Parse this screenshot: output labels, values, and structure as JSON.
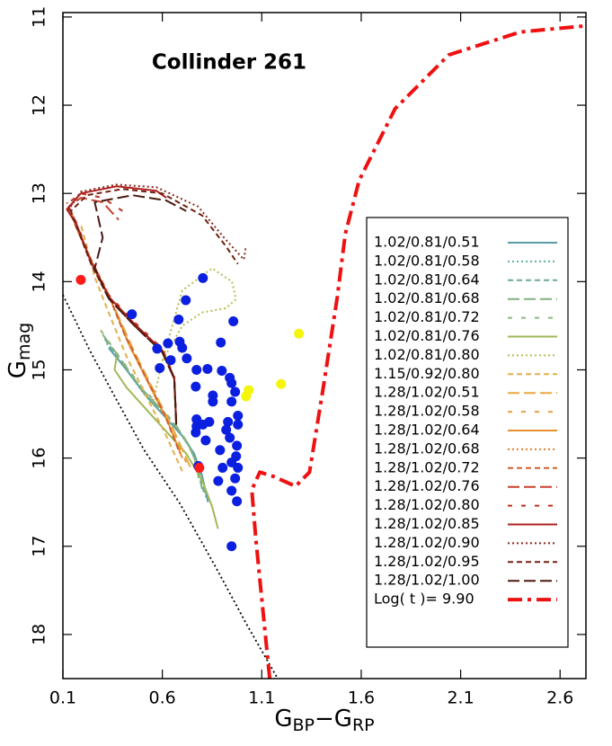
{
  "chart_data": {
    "type": "line",
    "title": "Collinder 261",
    "xlabel": [
      "G",
      "BP",
      "−G",
      "RP"
    ],
    "ylabel": [
      "G",
      "mag"
    ],
    "xlim": [
      0.1,
      2.73
    ],
    "ylim": [
      10.95,
      18.5
    ],
    "y_inverted": true,
    "xticks": [
      0.1,
      0.6,
      1.1,
      1.6,
      2.1,
      2.6
    ],
    "yticks": [
      11,
      12,
      13,
      14,
      15,
      16,
      17,
      18
    ],
    "legend": "lower right",
    "series": [
      {
        "name": "1.02/0.81/0.51",
        "color": "#5a9aa8",
        "style": "solid",
        "width": 2,
        "x": [
          0.33,
          0.42,
          0.52,
          0.62,
          0.7,
          0.76,
          0.8,
          0.83
        ],
        "values": [
          14.75,
          15.0,
          15.3,
          15.55,
          15.75,
          15.95,
          16.2,
          16.5
        ]
      },
      {
        "name": "1.02/0.81/0.58",
        "color": "#5fb0a0",
        "style": "dotted",
        "width": 2,
        "x": [
          0.32,
          0.41,
          0.51,
          0.61,
          0.69,
          0.75,
          0.79,
          0.82
        ],
        "values": [
          14.7,
          14.97,
          15.28,
          15.52,
          15.72,
          15.92,
          16.15,
          16.45
        ]
      },
      {
        "name": "1.02/0.81/0.64",
        "color": "#6aaa90",
        "style": "dashed",
        "width": 2,
        "x": [
          0.31,
          0.4,
          0.5,
          0.6,
          0.68,
          0.74,
          0.78,
          0.81
        ],
        "values": [
          14.65,
          14.93,
          15.24,
          15.48,
          15.68,
          15.88,
          16.1,
          16.4
        ]
      },
      {
        "name": "1.02/0.81/0.68",
        "color": "#80b080",
        "style": "longdash",
        "width": 2,
        "x": [
          0.3,
          0.39,
          0.49,
          0.59,
          0.67,
          0.73,
          0.77,
          0.8
        ],
        "values": [
          14.6,
          14.88,
          15.2,
          15.44,
          15.64,
          15.84,
          16.05,
          16.35
        ]
      },
      {
        "name": "1.02/0.81/0.72",
        "color": "#90b878",
        "style": "sparse",
        "width": 2,
        "x": [
          0.29,
          0.38,
          0.48,
          0.58,
          0.66,
          0.72,
          0.76,
          0.79
        ],
        "values": [
          14.55,
          14.84,
          15.15,
          15.4,
          15.6,
          15.8,
          16.0,
          16.3
        ]
      },
      {
        "name": "1.02/0.81/0.76",
        "color": "#a0b858",
        "style": "solid",
        "width": 2,
        "x": [
          0.37,
          0.36,
          0.42,
          0.52,
          0.62,
          0.72,
          0.8,
          0.85,
          0.88
        ],
        "values": [
          14.85,
          15.0,
          15.2,
          15.45,
          15.7,
          15.95,
          16.25,
          16.55,
          16.8
        ]
      },
      {
        "name": "1.02/0.81/0.80",
        "color": "#b8bc50",
        "style": "dotted",
        "width": 2,
        "x": [
          0.55,
          0.6,
          0.7,
          0.85,
          0.95,
          0.97,
          0.92,
          0.8,
          0.7,
          0.6
        ],
        "values": [
          15.4,
          14.9,
          14.1,
          13.85,
          14.0,
          14.2,
          14.3,
          14.35,
          14.5,
          14.9
        ]
      },
      {
        "name": "1.15/0.92/0.80",
        "color": "#e0b050",
        "style": "dashed",
        "width": 2,
        "x": [
          0.7,
          0.62,
          0.52,
          0.42,
          0.33,
          0.26,
          0.22,
          0.19
        ],
        "values": [
          16.15,
          15.75,
          15.3,
          14.85,
          14.35,
          13.95,
          13.6,
          13.35
        ]
      },
      {
        "name": "1.28/1.02/0.51",
        "color": "#e8a840",
        "style": "longdash",
        "width": 2,
        "x": [
          0.74,
          0.66,
          0.56,
          0.46,
          0.36,
          0.27,
          0.2,
          0.16
        ],
        "values": [
          16.1,
          15.7,
          15.25,
          14.8,
          14.3,
          13.9,
          13.55,
          13.3
        ]
      },
      {
        "name": "1.28/1.02/0.58",
        "color": "#e8a040",
        "style": "sparse",
        "width": 2,
        "x": [
          0.72,
          0.64,
          0.54,
          0.44,
          0.35,
          0.26,
          0.19,
          0.15
        ],
        "values": [
          16.05,
          15.65,
          15.2,
          14.75,
          14.25,
          13.85,
          13.5,
          13.25
        ]
      },
      {
        "name": "1.28/1.02/0.64",
        "color": "#e89030",
        "style": "solid",
        "width": 2,
        "x": [
          0.7,
          0.63,
          0.53,
          0.43,
          0.34,
          0.25,
          0.18,
          0.14
        ],
        "values": [
          16.0,
          15.6,
          15.15,
          14.7,
          14.2,
          13.8,
          13.45,
          13.2
        ]
      },
      {
        "name": "1.28/1.02/0.68",
        "color": "#e08030",
        "style": "dotted",
        "width": 2,
        "x": [
          0.69,
          0.62,
          0.52,
          0.42,
          0.33,
          0.24,
          0.17,
          0.13
        ],
        "values": [
          15.95,
          15.55,
          15.1,
          14.65,
          14.15,
          13.75,
          13.4,
          13.15
        ]
      },
      {
        "name": "1.28/1.02/0.72",
        "color": "#d06030",
        "style": "dashed",
        "width": 2,
        "x": [
          0.68,
          0.61,
          0.51,
          0.41,
          0.32,
          0.23,
          0.16,
          0.12
        ],
        "values": [
          15.9,
          15.5,
          15.05,
          14.6,
          14.1,
          13.7,
          13.35,
          13.1
        ]
      },
      {
        "name": "1.28/1.02/0.76",
        "color": "#c84030",
        "style": "longdash",
        "width": 2,
        "x": [
          0.67,
          0.66,
          0.6,
          0.46,
          0.33,
          0.24,
          0.17,
          0.13,
          0.19,
          0.3,
          0.38
        ],
        "values": [
          15.6,
          15.09,
          14.78,
          14.48,
          14.17,
          13.77,
          13.36,
          13.15,
          13.05,
          13.1,
          13.3
        ]
      },
      {
        "name": "1.28/1.02/0.80",
        "color": "#c03020",
        "style": "sparse",
        "width": 2,
        "x": [
          0.67,
          0.66,
          0.6,
          0.46,
          0.33,
          0.24,
          0.17,
          0.12,
          0.19,
          0.3,
          0.4
        ],
        "values": [
          15.58,
          15.08,
          14.76,
          14.46,
          14.15,
          13.75,
          13.34,
          13.12,
          13.0,
          13.05,
          13.2
        ]
      },
      {
        "name": "1.28/1.02/0.85",
        "color": "#b02020",
        "style": "solid",
        "width": 2,
        "x": [
          0.67,
          0.66,
          0.6,
          0.46,
          0.33,
          0.24,
          0.17,
          0.12,
          0.19,
          0.37,
          0.57,
          0.62
        ],
        "values": [
          15.6,
          15.09,
          14.78,
          14.48,
          14.17,
          13.77,
          13.36,
          13.18,
          13.0,
          12.92,
          12.97,
          13.05
        ]
      },
      {
        "name": "1.28/1.02/0.90",
        "color": "#8b2a20",
        "style": "dotted",
        "width": 2,
        "x": [
          0.67,
          0.66,
          0.6,
          0.46,
          0.33,
          0.24,
          0.17,
          0.13,
          0.19,
          0.37,
          0.57,
          0.78,
          0.91,
          1.01,
          1.02
        ],
        "values": [
          15.62,
          15.1,
          14.8,
          14.5,
          14.19,
          13.79,
          13.38,
          13.18,
          12.98,
          12.9,
          12.93,
          13.15,
          13.5,
          13.75,
          13.6
        ]
      },
      {
        "name": "1.28/1.02/0.95",
        "color": "#702010",
        "style": "dashed",
        "width": 2,
        "x": [
          0.67,
          0.66,
          0.6,
          0.46,
          0.33,
          0.24,
          0.17,
          0.14,
          0.22,
          0.4,
          0.6,
          0.8,
          0.92,
          0.98
        ],
        "values": [
          15.62,
          15.1,
          14.8,
          14.5,
          14.19,
          13.79,
          13.38,
          13.2,
          13.02,
          12.95,
          13.0,
          13.25,
          13.6,
          13.8
        ]
      },
      {
        "name": "1.28/1.02/1.00",
        "color": "#4a1a10",
        "style": "longdash",
        "width": 2,
        "x": [
          0.67,
          0.66,
          0.6,
          0.46,
          0.33,
          0.26,
          0.3,
          0.26,
          0.45,
          0.62,
          0.72
        ],
        "values": [
          15.62,
          15.1,
          14.8,
          14.5,
          14.19,
          13.85,
          13.5,
          13.1,
          13.02,
          13.08,
          13.2
        ]
      },
      {
        "name": "Log( t )= 9.90",
        "color": "#ee1111",
        "style": "dashdot",
        "width": 4,
        "x": [
          1.14,
          1.07,
          1.05,
          1.09,
          1.16,
          1.27,
          1.34,
          1.41,
          1.48,
          1.52,
          1.59,
          1.77,
          2.04,
          2.4,
          2.73
        ],
        "values": [
          18.5,
          16.92,
          16.36,
          16.16,
          16.21,
          16.32,
          16.16,
          15.19,
          14.17,
          13.46,
          12.85,
          12.04,
          11.43,
          11.17,
          11.1
        ]
      }
    ],
    "zams": {
      "color": "#000000",
      "style": "dotted",
      "x": [
        0.1,
        0.235,
        0.37,
        0.506,
        0.687,
        0.867,
        1.025,
        1.18
      ],
      "values": [
        14.15,
        14.78,
        15.34,
        15.9,
        16.51,
        17.23,
        17.89,
        18.5
      ]
    },
    "scatter": [
      {
        "color": "#0a1fe0",
        "x": [
          0.804,
          0.718,
          0.682,
          0.628,
          0.687,
          0.574,
          0.7,
          0.723,
          0.642,
          0.587,
          0.772,
          0.957,
          0.894,
          0.827,
          0.899,
          0.854,
          0.854,
          0.939,
          0.948,
          0.966,
          0.948,
          0.98,
          0.98,
          0.93,
          0.921,
          0.939,
          0.975,
          0.971,
          0.948,
          0.98,
          0.966,
          0.948,
          0.975,
          0.89,
          0.903,
          0.881,
          0.781,
          0.772,
          0.804,
          0.836,
          0.818,
          0.768,
          0.948,
          0.447,
          0.768,
          0.772
        ],
        "values": [
          13.96,
          14.21,
          14.43,
          14.7,
          14.68,
          14.76,
          14.75,
          14.87,
          14.89,
          14.98,
          15.0,
          14.45,
          14.69,
          14.99,
          15.01,
          15.29,
          15.36,
          15.09,
          15.15,
          15.25,
          15.36,
          15.52,
          15.62,
          15.59,
          15.68,
          15.77,
          15.86,
          15.98,
          16.05,
          16.11,
          16.23,
          16.37,
          16.49,
          15.91,
          16.11,
          16.26,
          16.09,
          15.64,
          15.62,
          15.59,
          15.8,
          15.71,
          17.0,
          14.37,
          15.19,
          15.56
        ]
      },
      {
        "color": "#f5f50a",
        "x": [
          1.287,
          1.197,
          1.034,
          1.021
        ],
        "values": [
          14.59,
          15.16,
          15.23,
          15.3
        ]
      },
      {
        "color": "#ff1a1a",
        "x": [
          0.19,
          0.786
        ],
        "values": [
          13.98,
          16.11
        ]
      }
    ]
  }
}
